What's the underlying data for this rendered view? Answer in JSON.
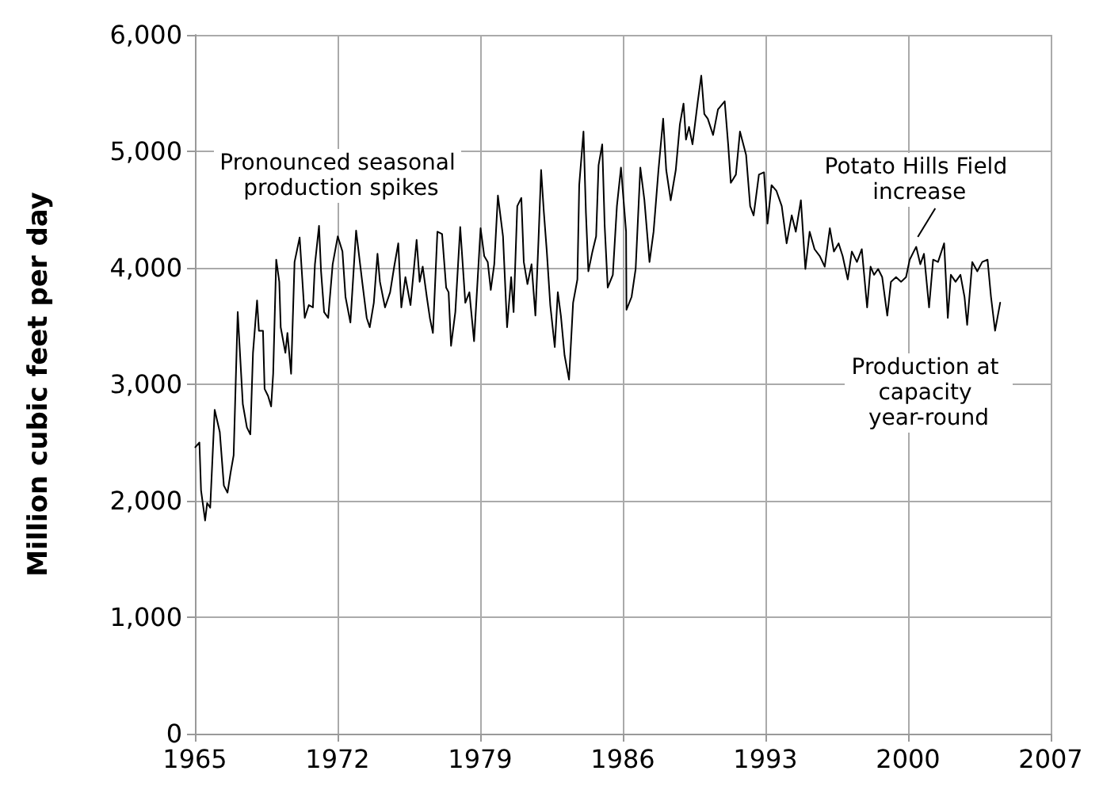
{
  "chart_data": {
    "type": "line",
    "ylabel": "Million cubic feet per day",
    "xlim": [
      1965,
      2007
    ],
    "xticks": [
      1965,
      1972,
      1979,
      1986,
      1993,
      2000,
      2007
    ],
    "ylim": [
      0,
      6000
    ],
    "yticks": [
      0,
      {
        "value": 1000,
        "label": "1,000"
      },
      {
        "value": 2000,
        "label": "2,000"
      },
      {
        "value": 3000,
        "label": "3,000"
      },
      {
        "value": 4000,
        "label": "4,000"
      },
      {
        "value": 5000,
        "label": "5,000"
      },
      {
        "value": 6000,
        "label": "6,000"
      }
    ],
    "grid": true,
    "marker": "none",
    "line_style": "solid",
    "annotations": [
      "Pronounced seasonal production spikes",
      {
        "text": "Potato Hills Field increase",
        "x": 2000.4,
        "y": 4183
      },
      "Production at capacity year-round"
    ],
    "series": [
      {
        "color": "#000000",
        "x": [
          1965.02,
          1965.22,
          1965.3,
          1965.5,
          1965.6,
          1965.75,
          1965.97,
          1966.22,
          1966.42,
          1966.6,
          1966.75,
          1966.9,
          1967.1,
          1967.35,
          1967.55,
          1967.72,
          1967.85,
          1968.05,
          1968.14,
          1968.34,
          1968.42,
          1968.59,
          1968.74,
          1968.84,
          1968.99,
          1969.14,
          1969.21,
          1969.44,
          1969.54,
          1969.72,
          1969.89,
          1970.14,
          1970.39,
          1970.59,
          1970.79,
          1970.89,
          1971.09,
          1971.19,
          1971.34,
          1971.54,
          1971.76,
          1972.01,
          1972.24,
          1972.39,
          1972.63,
          1972.91,
          1973.21,
          1973.43,
          1973.58,
          1973.78,
          1973.96,
          1974.08,
          1974.33,
          1974.58,
          1974.78,
          1974.98,
          1975.13,
          1975.33,
          1975.58,
          1975.88,
          1976.03,
          1976.18,
          1976.38,
          1976.53,
          1976.68,
          1976.9,
          1977.13,
          1977.33,
          1977.45,
          1977.57,
          1977.78,
          1978.02,
          1978.27,
          1978.47,
          1978.7,
          1979.02,
          1979.2,
          1979.37,
          1979.52,
          1979.69,
          1979.87,
          1980.12,
          1980.32,
          1980.52,
          1980.64,
          1980.82,
          1981.02,
          1981.14,
          1981.32,
          1981.52,
          1981.71,
          1981.86,
          1981.99,
          1982.12,
          1982.27,
          1982.44,
          1982.66,
          1982.81,
          1982.96,
          1983.14,
          1983.36,
          1983.56,
          1983.77,
          1983.86,
          1984.07,
          1984.19,
          1984.31,
          1984.51,
          1984.69,
          1984.81,
          1984.99,
          1985.11,
          1985.26,
          1985.51,
          1985.71,
          1985.91,
          1986.16,
          1986.18,
          1986.43,
          1986.63,
          1986.86,
          1987.06,
          1987.31,
          1987.51,
          1987.75,
          1987.98,
          1988.13,
          1988.35,
          1988.6,
          1988.8,
          1988.98,
          1989.1,
          1989.25,
          1989.42,
          1989.68,
          1989.85,
          1990.0,
          1990.17,
          1990.43,
          1990.67,
          1991.0,
          1991.17,
          1991.3,
          1991.55,
          1991.75,
          1992.05,
          1992.25,
          1992.42,
          1992.68,
          1992.93,
          1993.1,
          1993.3,
          1993.54,
          1993.8,
          1994.04,
          1994.29,
          1994.49,
          1994.74,
          1994.96,
          1995.17,
          1995.41,
          1995.67,
          1995.91,
          1996.16,
          1996.36,
          1996.59,
          1996.79,
          1997.04,
          1997.24,
          1997.49,
          1997.73,
          1997.99,
          1998.16,
          1998.33,
          1998.53,
          1998.73,
          1998.98,
          1999.16,
          1999.41,
          1999.66,
          1999.9,
          2000.08,
          2000.28,
          2000.4,
          2000.6,
          2000.78,
          2001.03,
          2001.23,
          2001.47,
          2001.77,
          2001.95,
          2002.1,
          2002.33,
          2002.57,
          2002.77,
          2002.9,
          2003.15,
          2003.4,
          2003.64,
          2003.9,
          2004.07,
          2004.27,
          2004.52
        ],
        "values": [
          2460,
          2500,
          2090,
          1830,
          1980,
          1940,
          2780,
          2590,
          2130,
          2070,
          2240,
          2390,
          3620,
          2830,
          2630,
          2570,
          3270,
          3720,
          3460,
          3460,
          2960,
          2900,
          2810,
          3090,
          4070,
          3880,
          3490,
          3270,
          3440,
          3090,
          4050,
          4260,
          3570,
          3680,
          3660,
          4030,
          4360,
          3970,
          3620,
          3570,
          4030,
          4270,
          4140,
          3750,
          3530,
          4320,
          3880,
          3570,
          3490,
          3700,
          4120,
          3880,
          3660,
          3790,
          4010,
          4210,
          3660,
          3920,
          3680,
          4240,
          3880,
          4010,
          3750,
          3570,
          3440,
          4310,
          4290,
          3830,
          3790,
          3330,
          3620,
          4350,
          3700,
          3790,
          3370,
          4340,
          4100,
          4050,
          3810,
          4030,
          4620,
          4270,
          3490,
          3920,
          3620,
          4530,
          4600,
          4050,
          3860,
          4030,
          3590,
          4230,
          4840,
          4490,
          4140,
          3680,
          3320,
          3790,
          3590,
          3250,
          3040,
          3700,
          3900,
          4710,
          5170,
          4470,
          3970,
          4140,
          4270,
          4880,
          5060,
          4360,
          3830,
          3940,
          4530,
          4860,
          4310,
          3640,
          3750,
          3990,
          4860,
          4580,
          4050,
          4310,
          4840,
          5280,
          4840,
          4580,
          4840,
          5230,
          5410,
          5100,
          5210,
          5060,
          5430,
          5650,
          5320,
          5280,
          5140,
          5360,
          5430,
          5060,
          4730,
          4800,
          5170,
          4970,
          4530,
          4450,
          4800,
          4820,
          4380,
          4710,
          4660,
          4530,
          4210,
          4450,
          4310,
          4580,
          3990,
          4310,
          4160,
          4100,
          4010,
          4340,
          4140,
          4210,
          4100,
          3900,
          4140,
          4050,
          4160,
          3660,
          4010,
          3940,
          3990,
          3920,
          3590,
          3880,
          3920,
          3880,
          3920,
          4070,
          4140,
          4180,
          4030,
          4120,
          3660,
          4070,
          4050,
          4210,
          3570,
          3940,
          3880,
          3940,
          3750,
          3510,
          4050,
          3970,
          4050,
          4070,
          3750,
          3460,
          3700
        ]
      }
    ]
  }
}
